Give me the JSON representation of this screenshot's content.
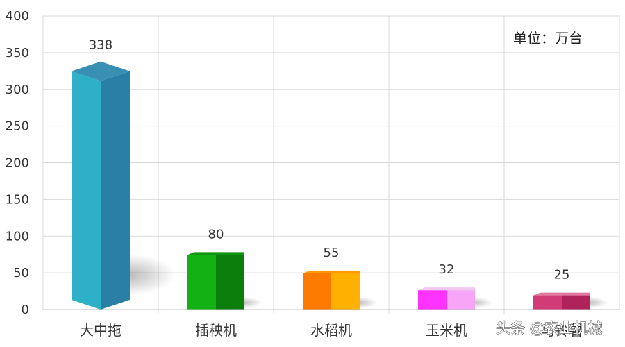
{
  "chart_data": {
    "type": "bar",
    "categories": [
      "大中拖",
      "插秧机",
      "水稻机",
      "玉米机",
      "马铃薯"
    ],
    "values": [
      338,
      80,
      55,
      32,
      25
    ],
    "ylim": [
      0,
      400
    ],
    "yticks": [
      0,
      50,
      100,
      150,
      200,
      250,
      300,
      350,
      400
    ],
    "grid": true,
    "unit_label": "单位：万台",
    "bar_colors": [
      {
        "front": "#2eb0c8",
        "side": "#2a7fa6",
        "top": "#3a8fb4"
      },
      {
        "front": "#13b113",
        "side": "#0a7d0a",
        "top": "#0e960e"
      },
      {
        "front": "#ff7a00",
        "side": "#ffb000",
        "top": "#ff9900"
      },
      {
        "front": "#ff33ff",
        "side": "#f7a6f7",
        "top": "#f0c8f0"
      },
      {
        "front": "#d23c76",
        "side": "#b0235a",
        "top": "#e07aa0"
      }
    ]
  },
  "watermark": "头条 @农业机械"
}
